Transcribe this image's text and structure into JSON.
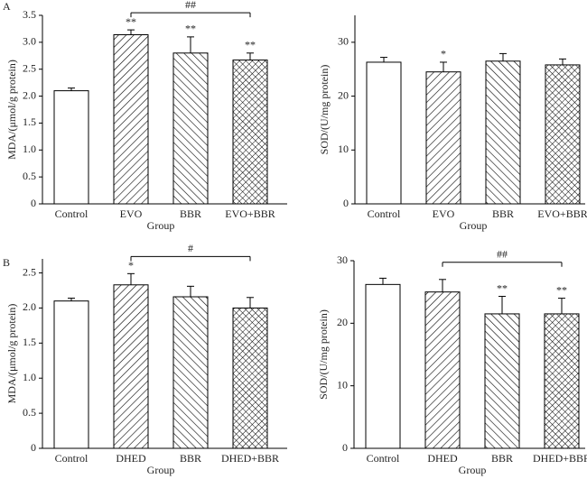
{
  "chart_data": [
    {
      "type": "bar",
      "panel": "A",
      "ylabel": "MDA/(μmol/g protein)",
      "xlabel": "Group",
      "categories": [
        "Control",
        "EVO",
        "BBR",
        "EVO+BBR"
      ],
      "values": [
        2.1,
        3.14,
        2.8,
        2.67
      ],
      "errors": [
        0.05,
        0.09,
        0.3,
        0.13
      ],
      "significance": [
        null,
        "**",
        "**",
        "**"
      ],
      "bracket": {
        "from": "EVO",
        "to": "EVO+BBR",
        "label": "##"
      },
      "patterns": [
        "none",
        "forward-hatch",
        "backward-hatch",
        "cross-hatch"
      ],
      "color": "#000000",
      "ylim": [
        0,
        3.5
      ],
      "yticks": [
        0,
        0.5,
        {
          "value": 1,
          "label": "1.0"
        },
        1.5,
        {
          "value": 2,
          "label": "2.0"
        },
        2.5,
        {
          "value": 3,
          "label": "3.0"
        },
        3.5
      ]
    },
    {
      "type": "bar",
      "ylabel": "SOD/(U/mg protein)",
      "xlabel": "Group",
      "categories": [
        "Control",
        "EVO",
        "BBR",
        "EVO+BBR"
      ],
      "values": [
        26.3,
        24.5,
        26.5,
        25.8
      ],
      "errors": [
        0.9,
        1.8,
        1.4,
        1.1
      ],
      "significance": [
        null,
        "*",
        null,
        null
      ],
      "patterns": [
        "none",
        "forward-hatch",
        "backward-hatch",
        "cross-hatch"
      ],
      "color": "#000000",
      "ylim": [
        0,
        35
      ],
      "yticks": [
        0,
        10,
        20,
        30
      ]
    },
    {
      "type": "bar",
      "panel": "B",
      "ylabel": "MDA/(μmol/g protein)",
      "xlabel": "Group",
      "categories": [
        "Control",
        "DHED",
        "BBR",
        "DHED+BBR"
      ],
      "values": [
        2.1,
        2.33,
        2.16,
        2.0
      ],
      "errors": [
        0.04,
        0.16,
        0.15,
        0.15
      ],
      "significance": [
        null,
        "*",
        null,
        null
      ],
      "bracket": {
        "from": "DHED",
        "to": "DHED+BBR",
        "label": "#"
      },
      "patterns": [
        "none",
        "forward-hatch",
        "backward-hatch",
        "cross-hatch"
      ],
      "color": "#000000",
      "ylim": [
        0,
        2.7
      ],
      "yticks": [
        0,
        0.5,
        {
          "value": 1,
          "label": "1.0"
        },
        1.5,
        {
          "value": 2,
          "label": "2.0"
        },
        2.5
      ]
    },
    {
      "type": "bar",
      "ylabel": "SOD/(U/mg protein)",
      "xlabel": "Group",
      "categories": [
        "Control",
        "DHED",
        "BBR",
        "DHED+BBR"
      ],
      "values": [
        26.2,
        25.0,
        21.5,
        21.5
      ],
      "errors": [
        1.0,
        2.0,
        2.8,
        2.5
      ],
      "significance": [
        null,
        null,
        "**",
        "**"
      ],
      "bracket": {
        "from": "DHED",
        "to": "DHED+BBR",
        "label": "##"
      },
      "patterns": [
        "none",
        "forward-hatch",
        "backward-hatch",
        "cross-hatch"
      ],
      "color": "#000000",
      "ylim": [
        0,
        30
      ],
      "yticks": [
        0,
        10,
        20,
        30
      ]
    }
  ]
}
